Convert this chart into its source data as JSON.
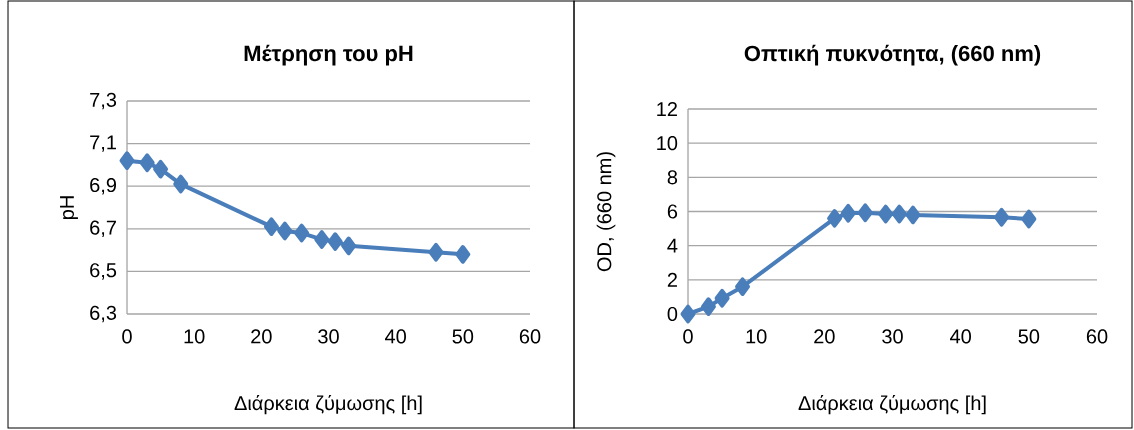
{
  "chart_data": [
    {
      "type": "line",
      "title": "Μέτρηση του pH",
      "xlabel": "Διάρκεια ζύμωσης [h]",
      "ylabel": "pH",
      "x": [
        0,
        3,
        5,
        8,
        21.5,
        23.5,
        26,
        29,
        31,
        33,
        46,
        50
      ],
      "values": [
        7.02,
        7.01,
        6.98,
        6.91,
        6.71,
        6.69,
        6.68,
        6.65,
        6.64,
        6.62,
        6.59,
        6.58
      ],
      "color": "#4a7ebb",
      "marker": "diamond",
      "grid": "y",
      "xlim": [
        0,
        60
      ],
      "xticks": [
        0,
        10,
        20,
        30,
        40,
        50,
        60
      ],
      "ylim": [
        6.3,
        7.3
      ],
      "yticks": [
        {
          "value": 6.3,
          "label": "6,3"
        },
        {
          "value": 6.5,
          "label": "6,5"
        },
        {
          "value": 6.7,
          "label": "6,7"
        },
        {
          "value": 6.9,
          "label": "6,9"
        },
        {
          "value": 7.1,
          "label": "7,1"
        },
        {
          "value": 7.3,
          "label": "7,3"
        }
      ]
    },
    {
      "type": "line",
      "title": "Οπτική πυκνότητα, (660 nm)",
      "xlabel": "Διάρκεια ζύμωσης [h]",
      "ylabel": "OD, (660 nm)",
      "x": [
        0,
        3,
        5,
        8,
        21.5,
        23.5,
        26,
        29,
        31,
        33,
        46,
        50
      ],
      "values": [
        0,
        0.43,
        0.92,
        1.6,
        5.6,
        5.9,
        5.93,
        5.85,
        5.85,
        5.8,
        5.66,
        5.56
      ],
      "color": "#4a7ebb",
      "marker": "diamond",
      "grid": "y",
      "xlim": [
        0,
        60
      ],
      "xticks": [
        0,
        10,
        20,
        30,
        40,
        50,
        60
      ],
      "ylim": [
        0,
        12
      ],
      "yticks": [
        0,
        2,
        4,
        6,
        8,
        10,
        12
      ]
    }
  ]
}
